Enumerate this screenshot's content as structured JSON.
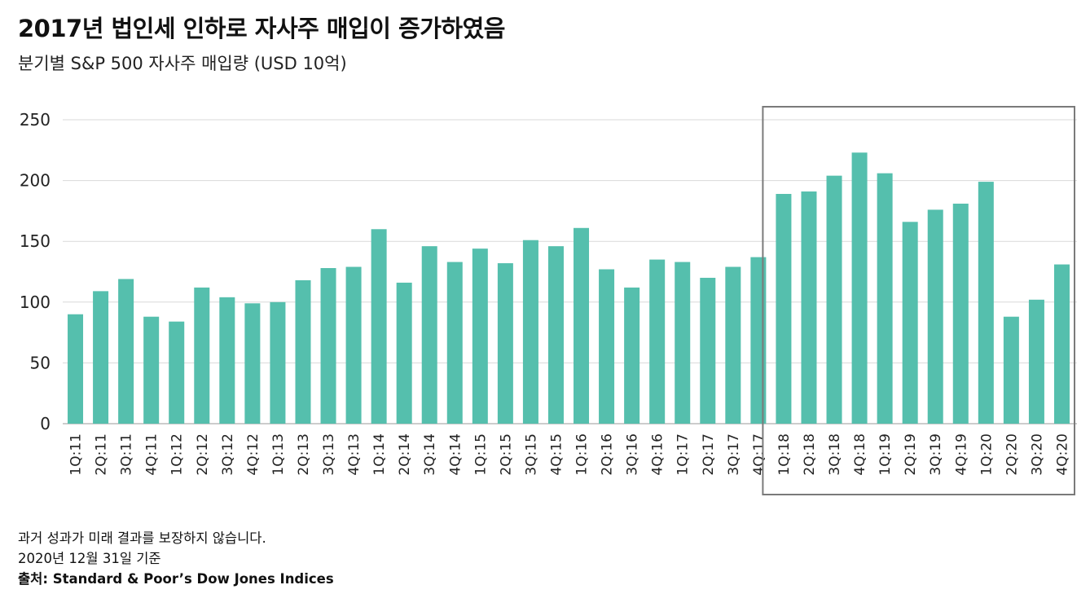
{
  "chart_data": {
    "type": "bar",
    "title": "2017년 법인세 인하로 자사주 매입이 증가하였음",
    "subtitle": "분기별 S&P 500 자사주 매입량 (USD 10억)",
    "xlabel": "",
    "ylabel": "",
    "ylim": [
      0,
      250
    ],
    "yticks": [
      0,
      50,
      100,
      150,
      200,
      250
    ],
    "grid": true,
    "bar_color": "#55bfad",
    "highlight_box": {
      "from": "1Q:18",
      "to": "4Q:20",
      "color": "#7a7a7a"
    },
    "categories": [
      "1Q:11",
      "2Q:11",
      "3Q:11",
      "4Q:11",
      "1Q:12",
      "2Q:12",
      "3Q:12",
      "4Q:12",
      "1Q:13",
      "2Q:13",
      "3Q:13",
      "4Q:13",
      "1Q:14",
      "2Q:14",
      "3Q:14",
      "4Q:14",
      "1Q:15",
      "2Q:15",
      "3Q:15",
      "4Q:15",
      "1Q:16",
      "2Q:16",
      "3Q:16",
      "4Q:16",
      "1Q:17",
      "2Q:17",
      "3Q:17",
      "4Q:17",
      "1Q:18",
      "2Q:18",
      "3Q:18",
      "4Q:18",
      "1Q:19",
      "2Q:19",
      "3Q:19",
      "4Q:19",
      "1Q:20",
      "2Q:20",
      "3Q:20",
      "4Q:20"
    ],
    "values": [
      90,
      109,
      119,
      88,
      84,
      112,
      104,
      99,
      100,
      118,
      128,
      129,
      160,
      116,
      146,
      133,
      144,
      132,
      151,
      146,
      161,
      127,
      112,
      135,
      133,
      120,
      129,
      137,
      189,
      191,
      204,
      223,
      206,
      166,
      176,
      181,
      199,
      88,
      102,
      131
    ]
  },
  "footer": {
    "disclaimer": "과거 성과가 미래 결과를 보장하지 않습니다.",
    "as_of": "2020년 12월 31일 기준",
    "source": "출처: Standard & Poor’s Dow Jones Indices"
  }
}
